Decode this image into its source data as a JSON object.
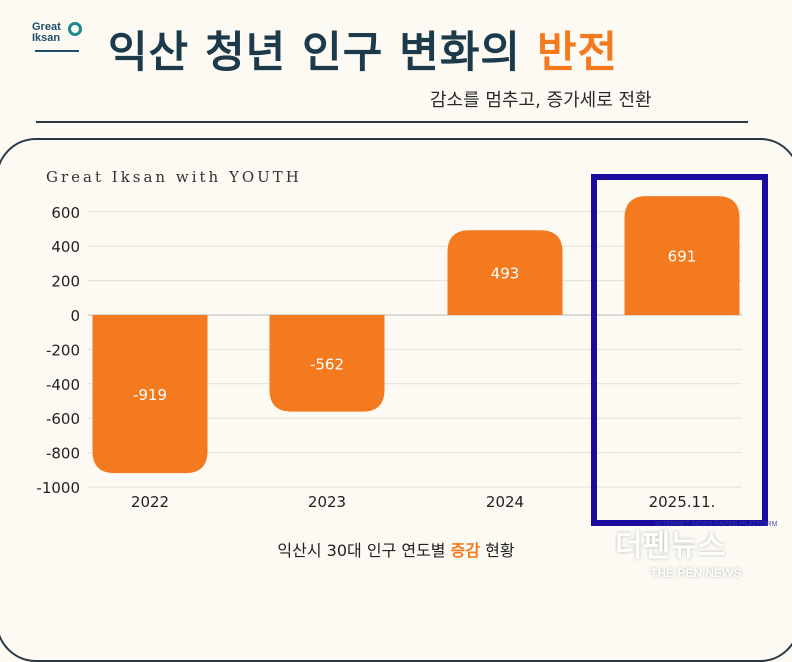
{
  "logo": {
    "text": "Great Iksan"
  },
  "header": {
    "title_main": "익산 청년 인구 변화의",
    "title_highlight": "반전",
    "subtitle": "감소를 멈추고, 증가세로 전환"
  },
  "chart_data": {
    "type": "bar",
    "title": "Great Iksan with YOUTH",
    "categories": [
      "2022",
      "2023",
      "2024",
      "2025.11."
    ],
    "values": [
      -919,
      -562,
      493,
      691
    ],
    "data_labels": [
      "-919",
      "-562",
      "493",
      "691"
    ],
    "ylim": [
      -1000,
      700
    ],
    "yticks": [
      600,
      400,
      200,
      0,
      -200,
      -400,
      -600,
      -800,
      -1000
    ],
    "grid": true,
    "bar_color": "#f47a20",
    "highlight_category": "2025.11.",
    "highlight_color": "#1a0c9e",
    "caption_pre": "익산시 30대 인구 연도별 ",
    "caption_bold": "증감",
    "caption_post": " 현황"
  },
  "watermark": {
    "top": "INTERNET NEWS PAPER PLATFORM",
    "main": "더펜뉴스",
    "sub": "THE PEN NEWS"
  }
}
